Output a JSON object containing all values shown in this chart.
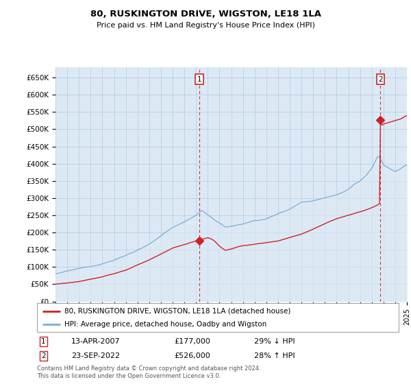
{
  "title": "80, RUSKINGTON DRIVE, WIGSTON, LE18 1LA",
  "subtitle": "Price paid vs. HM Land Registry's House Price Index (HPI)",
  "ylabel_ticks": [
    "£0",
    "£50K",
    "£100K",
    "£150K",
    "£200K",
    "£250K",
    "£300K",
    "£350K",
    "£400K",
    "£450K",
    "£500K",
    "£550K",
    "£600K",
    "£650K"
  ],
  "ylim": [
    0,
    680000
  ],
  "ytick_vals": [
    0,
    50000,
    100000,
    150000,
    200000,
    250000,
    300000,
    350000,
    400000,
    450000,
    500000,
    550000,
    600000,
    650000
  ],
  "hpi_color": "#7aadd4",
  "hpi_fill_color": "#dce9f5",
  "price_color": "#cc2222",
  "annotation_color": "#cc2222",
  "sale1_price": 177000,
  "sale2_price": 526000,
  "sale1_date": "13-APR-2007",
  "sale2_date": "23-SEP-2022",
  "sale1_hpi_pct": "29% ↓ HPI",
  "sale2_hpi_pct": "28% ↑ HPI",
  "legend_line1": "80, RUSKINGTON DRIVE, WIGSTON, LE18 1LA (detached house)",
  "legend_line2": "HPI: Average price, detached house, Oadby and Wigston",
  "footer": "Contains HM Land Registry data © Crown copyright and database right 2024.\nThis data is licensed under the Open Government Licence v3.0.",
  "background_color": "#ffffff",
  "chart_bg_color": "#dce9f5",
  "grid_color": "#b0c8e0"
}
